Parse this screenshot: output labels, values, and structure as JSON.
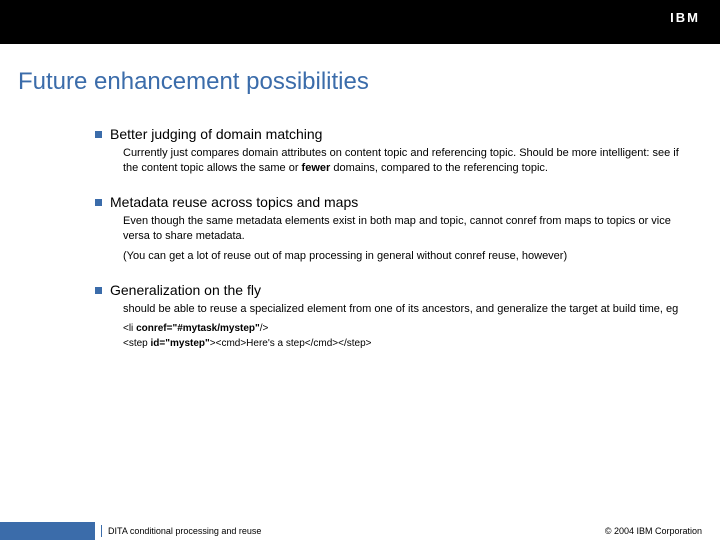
{
  "colors": {
    "header_bg": "#000000",
    "accent": "#3b6caa",
    "text": "#000000",
    "bg": "#ffffff"
  },
  "typography": {
    "title_fontsize": 24,
    "bullet_title_fontsize": 14,
    "body_fontsize": 11,
    "code_fontsize": 10,
    "footer_fontsize": 9,
    "font_family": "Arial"
  },
  "title": "Future enhancement possibilities",
  "bullets": [
    {
      "title": "Better judging of domain matching",
      "paragraphs": [
        "Currently just compares domain attributes on content topic and referencing topic. Should be more intelligent: see if the content topic allows the same or <b>fewer</b> domains, compared to the referencing topic."
      ]
    },
    {
      "title": "Metadata reuse across topics and maps",
      "paragraphs": [
        "Even though the same metadata elements exist in both map and topic, cannot conref from maps to topics or vice versa to share metadata.",
        "(You can get a lot of reuse out of map processing in general without conref reuse, however)"
      ]
    },
    {
      "title": "Generalization on the fly",
      "paragraphs": [
        "should be able to reuse a specialized element from one of its ancestors, and generalize the target at build time, eg"
      ],
      "code": [
        "&lt;li <b>conref=\"#mytask/mystep\"</b>/&gt;",
        "&lt;step <b>id=\"mystep\"</b>&gt;&lt;cmd&gt;Here's a step&lt;/cmd&gt;&lt;/step&gt;"
      ]
    }
  ],
  "footer": {
    "left": "DITA  conditional processing and reuse",
    "right": "© 2004 IBM Corporation"
  },
  "logo_text": "IBM"
}
